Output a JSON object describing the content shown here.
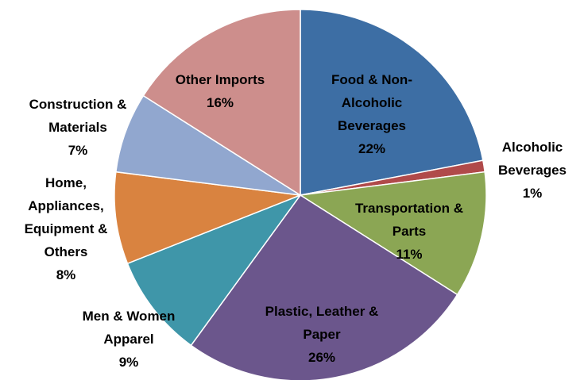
{
  "chart_data": {
    "type": "pie",
    "categories": [
      "Food & Non-Alcoholic Beverages",
      "Alcoholic Beverages",
      "Transportation & Parts",
      "Plastic, Leather & Paper",
      "Men & Women Apparel",
      "Home, Appliances, Equipment & Others",
      "Construction & Materials",
      "Other Imports"
    ],
    "values": [
      22,
      1,
      11,
      26,
      9,
      8,
      7,
      16
    ],
    "value_labels": [
      "22%",
      "1%",
      "11%",
      "26%",
      "9%",
      "8%",
      "7%",
      "16%"
    ],
    "colors": [
      "#3d6ea4",
      "#b04a4a",
      "#8ba654",
      "#6b568c",
      "#3f96a9",
      "#d98340",
      "#91a7cf",
      "#cd8e8c"
    ]
  }
}
